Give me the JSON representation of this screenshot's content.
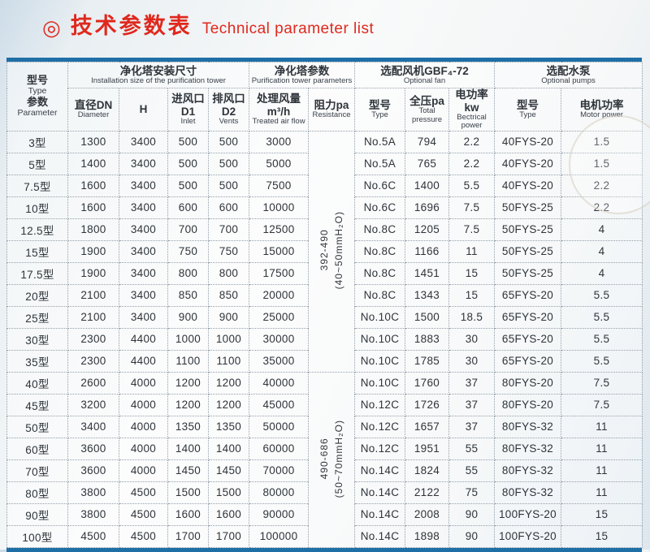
{
  "page": {
    "bullet_icon": "◎",
    "title_zh": "技术参数表",
    "title_en": "Technical parameter list",
    "accent_red": "#e0281d",
    "rule_blue": "#1f6fa7"
  },
  "table": {
    "groups": {
      "model": {
        "zh": "型号",
        "en": "Type",
        "zh2": "参数",
        "en2": "Parameter"
      },
      "install": {
        "zh": "净化塔安装尺寸",
        "en": "Installation size of the purification tower"
      },
      "tower_params": {
        "zh": "净化塔参数",
        "en": "Purification tower parameters"
      },
      "fan": {
        "zh": "选配风机GBF₄-72",
        "en": "Optional fan"
      },
      "pumps": {
        "zh": "选配水泵",
        "en": "Optional pumps"
      }
    },
    "columns": {
      "diameter": {
        "zh": "直径DN",
        "en": "Diameter"
      },
      "h": {
        "zh": "H",
        "en": ""
      },
      "inlet": {
        "zh": "进风口D1",
        "en": "Inlet"
      },
      "vents": {
        "zh": "排风口D2",
        "en": "Vents"
      },
      "airflow": {
        "zh": "处理风量m³/h",
        "en": "Treated air flow"
      },
      "resistance": {
        "zh": "阻力pa",
        "en": "Resistance"
      },
      "fan_type": {
        "zh": "型号",
        "en": "Type"
      },
      "pressure": {
        "zh": "全压pa",
        "en": "Total pressure"
      },
      "fan_power": {
        "zh": "电功率kw",
        "en": "Bectrical power"
      },
      "pump_type": {
        "zh": "型号",
        "en": "Type"
      },
      "pump_power": {
        "zh": "电机功率",
        "en": "Motor power"
      }
    },
    "resistance_groups": [
      {
        "range": "392-490",
        "unit": "(40~50mmH₂O)",
        "row_span": 11
      },
      {
        "range": "490-686",
        "unit": "(50~70mmH₂O)",
        "row_span": 8
      }
    ],
    "rows": [
      [
        "3型",
        "1300",
        "3400",
        "500",
        "500",
        "3000",
        "No.5A",
        "794",
        "2.2",
        "40FYS-20",
        "1.5"
      ],
      [
        "5型",
        "1400",
        "3400",
        "500",
        "500",
        "5000",
        "No.5A",
        "765",
        "2.2",
        "40FYS-20",
        "1.5"
      ],
      [
        "7.5型",
        "1600",
        "3400",
        "500",
        "500",
        "7500",
        "No.6C",
        "1400",
        "5.5",
        "40FYS-20",
        "2.2"
      ],
      [
        "10型",
        "1600",
        "3400",
        "600",
        "600",
        "10000",
        "No.6C",
        "1696",
        "7.5",
        "50FYS-25",
        "2.2"
      ],
      [
        "12.5型",
        "1800",
        "3400",
        "700",
        "700",
        "12500",
        "No.8C",
        "1205",
        "7.5",
        "50FYS-25",
        "4"
      ],
      [
        "15型",
        "1900",
        "3400",
        "750",
        "750",
        "15000",
        "No.8C",
        "1166",
        "11",
        "50FYS-25",
        "4"
      ],
      [
        "17.5型",
        "1900",
        "3400",
        "800",
        "800",
        "17500",
        "No.8C",
        "1451",
        "15",
        "50FYS-25",
        "4"
      ],
      [
        "20型",
        "2100",
        "3400",
        "850",
        "850",
        "20000",
        "No.8C",
        "1343",
        "15",
        "65FYS-20",
        "5.5"
      ],
      [
        "25型",
        "2100",
        "3400",
        "900",
        "900",
        "25000",
        "No.10C",
        "1500",
        "18.5",
        "65FYS-20",
        "5.5"
      ],
      [
        "30型",
        "2300",
        "4400",
        "1000",
        "1000",
        "30000",
        "No.10C",
        "1883",
        "30",
        "65FYS-20",
        "5.5"
      ],
      [
        "35型",
        "2300",
        "4400",
        "1100",
        "1100",
        "35000",
        "No.10C",
        "1785",
        "30",
        "65FYS-20",
        "5.5"
      ],
      [
        "40型",
        "2600",
        "4000",
        "1200",
        "1200",
        "40000",
        "No.10C",
        "1760",
        "37",
        "80FYS-20",
        "7.5"
      ],
      [
        "45型",
        "3200",
        "4000",
        "1200",
        "1200",
        "45000",
        "No.12C",
        "1726",
        "37",
        "80FYS-20",
        "7.5"
      ],
      [
        "50型",
        "3400",
        "4000",
        "1350",
        "1350",
        "50000",
        "No.12C",
        "1657",
        "37",
        "80FYS-32",
        "11"
      ],
      [
        "60型",
        "3600",
        "4000",
        "1400",
        "1400",
        "60000",
        "No.12C",
        "1951",
        "55",
        "80FYS-32",
        "11"
      ],
      [
        "70型",
        "3600",
        "4000",
        "1450",
        "1450",
        "70000",
        "No.14C",
        "1824",
        "55",
        "80FYS-32",
        "11"
      ],
      [
        "80型",
        "3800",
        "4500",
        "1500",
        "1500",
        "80000",
        "No.14C",
        "2122",
        "75",
        "80FYS-32",
        "11"
      ],
      [
        "90型",
        "3800",
        "4500",
        "1600",
        "1600",
        "90000",
        "No.14C",
        "2008",
        "90",
        "100FYS-20",
        "15"
      ],
      [
        "100型",
        "4500",
        "4500",
        "1700",
        "1700",
        "100000",
        "No.14C",
        "1898",
        "90",
        "100FYS-20",
        "15"
      ]
    ]
  }
}
